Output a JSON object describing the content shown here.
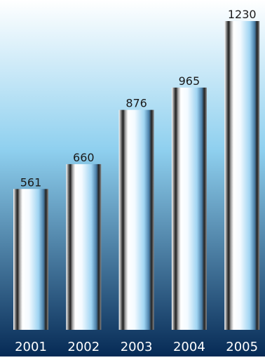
{
  "chart_data": {
    "type": "bar",
    "title": "",
    "xlabel": "",
    "ylabel": "",
    "categories": [
      "2001",
      "2002",
      "2003",
      "2004",
      "2005"
    ],
    "values": [
      561,
      660,
      876,
      965,
      1230
    ],
    "data_labels": [
      "561",
      "660",
      "876",
      "965",
      "1230"
    ],
    "ylim": [
      0,
      1230
    ],
    "grid": false,
    "legend": "none",
    "colors": {
      "background_top": "#ffffff",
      "background_mid": "#8fd0ef",
      "background_bottom": "#062a55",
      "bar_dark": "#2b2b2b",
      "bar_light": "#ffffff",
      "bar_blue": "#9fd4f2",
      "label_text": "#1a1a1a",
      "tick_text": "#ffffff"
    }
  }
}
